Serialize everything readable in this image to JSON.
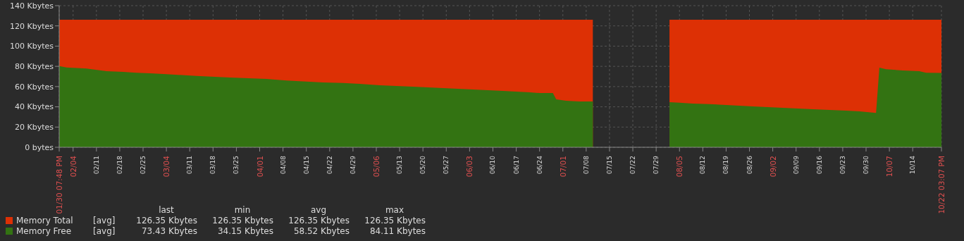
{
  "chart_data": {
    "type": "area",
    "series": [
      {
        "name": "Memory Total",
        "color": "#dd3005",
        "x": [
          "--01-30T19:48",
          "--07-10",
          "--07-20",
          "--08-02",
          "--10-22T15:07"
        ],
        "values": [
          126,
          126,
          null,
          126,
          126
        ]
      },
      {
        "name": "Memory Free",
        "color": "#337312",
        "x": [
          "--01-30T19:48",
          "--02-02",
          "--02-08",
          "--02-14",
          "--02-19",
          "--02-23",
          "--02-27",
          "--03-04",
          "--03-13",
          "--03-23",
          "--04-03",
          "--04-09",
          "--04-16",
          "--04-20",
          "--04-26",
          "--05-01",
          "--05-07",
          "--05-17",
          "--05-26",
          "--06-04",
          "--06-13",
          "--06-21",
          "--06-24",
          "--06-28",
          "--06-29",
          "--07-02",
          "--07-06",
          "--07-10",
          "--07-20",
          "--08-02",
          "--08-05",
          "--08-09",
          "--08-14",
          "--08-19",
          "--08-27",
          "--09-05",
          "--09-14",
          "--09-24",
          "--09-28",
          "--10-03",
          "--10-04",
          "--10-06",
          "--10-11",
          "--10-16",
          "--10-18",
          "--10-22T15:07"
        ],
        "values": [
          80.3,
          78.8,
          77.8,
          75.2,
          74.5,
          73.6,
          73.1,
          72.2,
          70.6,
          69,
          67.5,
          66,
          64.8,
          64.1,
          63.6,
          62.7,
          61.3,
          59.9,
          58.5,
          57.1,
          55.7,
          54.3,
          53.6,
          53.6,
          47.4,
          46,
          45.3,
          45.3,
          null,
          44.6,
          44.1,
          43.2,
          42.7,
          41.8,
          40.4,
          39,
          37.6,
          36.2,
          35.5,
          34,
          78.7,
          77.1,
          75.9,
          75.2,
          73.6,
          73.5
        ]
      }
    ],
    "ylim": [
      0,
      140
    ],
    "yticks": [
      {
        "value": 0,
        "label": "0 bytes"
      },
      {
        "value": 20,
        "label": "20 Kbytes"
      },
      {
        "value": 40,
        "label": "40 Kbytes"
      },
      {
        "value": 60,
        "label": "60 Kbytes"
      },
      {
        "value": 80,
        "label": "80 Kbytes"
      },
      {
        "value": 100,
        "label": "100 Kbytes"
      },
      {
        "value": 120,
        "label": "120 Kbytes"
      },
      {
        "value": 140,
        "label": "140 Kbytes"
      }
    ],
    "xlim": [
      "--01-30T19:48",
      "--10-22T15:07"
    ],
    "xticks": [
      {
        "value": "--01-30T19:48",
        "label": "01/30 07:48 PM"
      },
      {
        "value": "--02-04",
        "label": "02/04"
      },
      {
        "value": "--02-11",
        "label": "02/11"
      },
      {
        "value": "--02-18",
        "label": "02/18"
      },
      {
        "value": "--02-25",
        "label": "02/25"
      },
      {
        "value": "--03-04",
        "label": "03/04"
      },
      {
        "value": "--03-11",
        "label": "03/11"
      },
      {
        "value": "--03-18",
        "label": "03/18"
      },
      {
        "value": "--03-25",
        "label": "03/25"
      },
      {
        "value": "--04-01",
        "label": "04/01"
      },
      {
        "value": "--04-08",
        "label": "04/08"
      },
      {
        "value": "--04-15",
        "label": "04/15"
      },
      {
        "value": "--04-22",
        "label": "04/22"
      },
      {
        "value": "--04-29",
        "label": "04/29"
      },
      {
        "value": "--05-06",
        "label": "05/06"
      },
      {
        "value": "--05-13",
        "label": "05/13"
      },
      {
        "value": "--05-20",
        "label": "05/20"
      },
      {
        "value": "--05-27",
        "label": "05/27"
      },
      {
        "value": "--06-03",
        "label": "06/03"
      },
      {
        "value": "--06-10",
        "label": "06/10"
      },
      {
        "value": "--06-17",
        "label": "06/17"
      },
      {
        "value": "--06-24",
        "label": "06/24"
      },
      {
        "value": "--07-01",
        "label": "07/01"
      },
      {
        "value": "--07-08",
        "label": "07/08"
      },
      {
        "value": "--07-15",
        "label": "07/15"
      },
      {
        "value": "--07-22",
        "label": "07/22"
      },
      {
        "value": "--07-29",
        "label": "07/29"
      },
      {
        "value": "--08-05",
        "label": "08/05"
      },
      {
        "value": "--08-12",
        "label": "08/12"
      },
      {
        "value": "--08-19",
        "label": "08/19"
      },
      {
        "value": "--08-26",
        "label": "08/26"
      },
      {
        "value": "--09-02",
        "label": "09/02"
      },
      {
        "value": "--09-09",
        "label": "09/09"
      },
      {
        "value": "--09-16",
        "label": "09/16"
      },
      {
        "value": "--09-23",
        "label": "09/23"
      },
      {
        "value": "--09-30",
        "label": "09/30"
      },
      {
        "value": "--10-07",
        "label": "10/07"
      },
      {
        "value": "--10-14",
        "label": "10/14"
      },
      {
        "value": "--10-22T15:07",
        "label": "10/22 03:07 PM"
      }
    ],
    "grid": true,
    "legend": "bottom left",
    "annotations": [
      "last",
      "min",
      "avg",
      "max",
      "[avg]",
      "126.35 Kbytes",
      "126.35 Kbytes",
      "126.35 Kbytes",
      "126.35 Kbytes",
      "[avg]",
      "73.43 Kbytes",
      "34.15 Kbytes",
      "58.52 Kbytes",
      "84.11 Kbytes"
    ]
  }
}
